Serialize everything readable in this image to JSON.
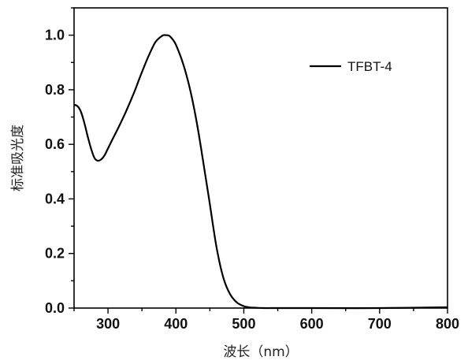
{
  "chart_data": {
    "type": "line",
    "xlabel": "波长（nm）",
    "ylabel": "标准吸光度",
    "xlim": [
      250,
      800
    ],
    "ylim": [
      0.0,
      1.1
    ],
    "x_ticks": [
      300,
      400,
      500,
      600,
      700,
      800
    ],
    "y_ticks": [
      0.0,
      0.2,
      0.4,
      0.6,
      0.8,
      1.0
    ],
    "x_tick_labels": [
      "300",
      "400",
      "500",
      "600",
      "700",
      "800"
    ],
    "y_tick_labels": [
      "0.0",
      "0.2",
      "0.4",
      "0.6",
      "0.8",
      "1.0"
    ],
    "grid": false,
    "legend_position": "top-right",
    "series": [
      {
        "name": "TFBT-4",
        "color": "#000000",
        "x": [
          250,
          255,
          260,
          265,
          270,
          275,
          280,
          285,
          290,
          295,
          300,
          310,
          320,
          330,
          340,
          350,
          360,
          370,
          380,
          385,
          390,
          395,
          400,
          410,
          420,
          430,
          440,
          450,
          460,
          470,
          480,
          490,
          500,
          505,
          510,
          520,
          530,
          550,
          600,
          700,
          800
        ],
        "y": [
          0.745,
          0.74,
          0.72,
          0.68,
          0.63,
          0.585,
          0.55,
          0.54,
          0.545,
          0.56,
          0.585,
          0.635,
          0.685,
          0.74,
          0.8,
          0.865,
          0.925,
          0.975,
          0.998,
          1.0,
          0.998,
          0.985,
          0.965,
          0.9,
          0.81,
          0.69,
          0.54,
          0.38,
          0.22,
          0.11,
          0.05,
          0.02,
          0.007,
          0.004,
          0.002,
          0.001,
          0.0,
          0.0,
          0.0,
          0.0,
          0.003
        ]
      }
    ]
  }
}
